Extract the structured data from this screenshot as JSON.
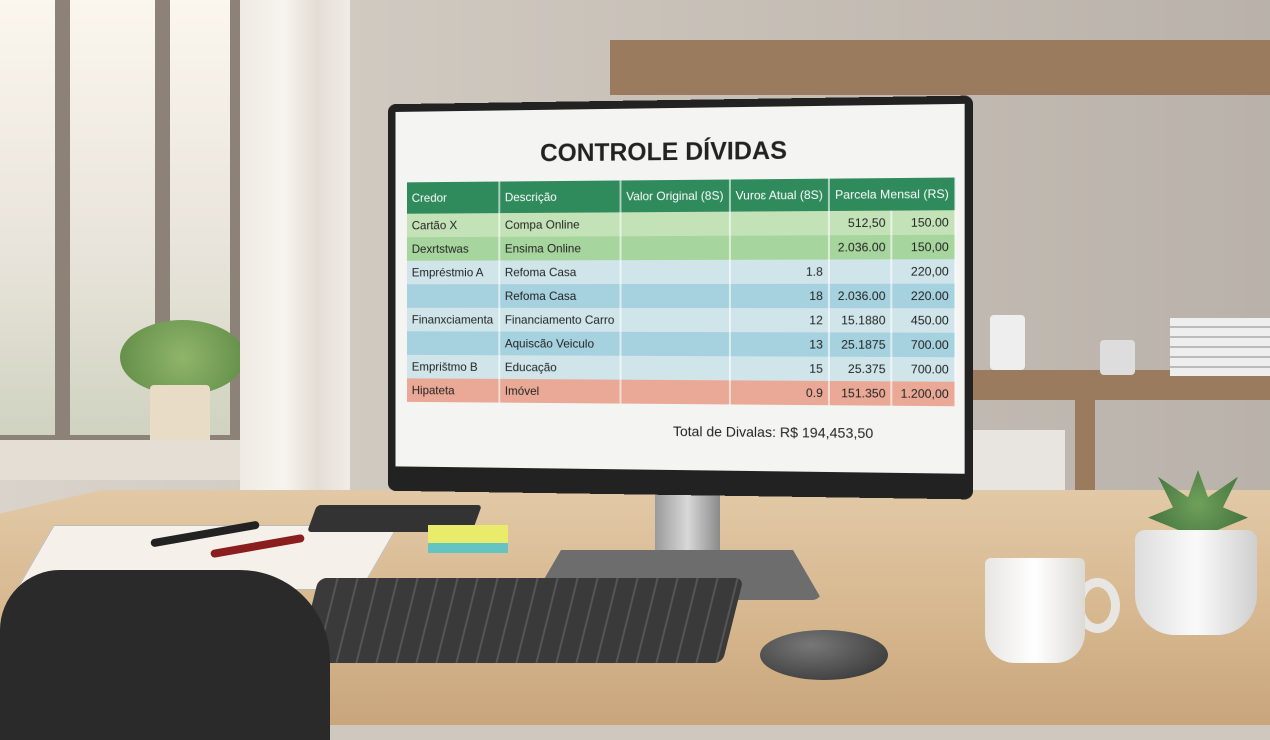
{
  "screen": {
    "title": "CONTROLE DÍVIDAS",
    "headers": [
      "Credor",
      "Descrição",
      "Valor Original (8S)",
      "Vuroɛ Atual (8S)",
      "Parcela Mensal (RS)",
      ""
    ],
    "rows": [
      {
        "credor": "Cartão X",
        "descricao": "Compa Online",
        "valor_original": "",
        "atual": "",
        "parcela": "512,50",
        "extra": "150.00",
        "tone": "g1"
      },
      {
        "credor": "Dexrtstwas",
        "descricao": "Ensima Online",
        "valor_original": "",
        "atual": "",
        "parcela": "2.036.00",
        "extra": "150,00",
        "tone": "g2"
      },
      {
        "credor": "Empréstmio A",
        "descricao": "Refoma Casa",
        "valor_original": "",
        "atual": "1.8",
        "parcela": "",
        "extra": "220,00",
        "tone": "b1"
      },
      {
        "credor": "",
        "descricao": "Refoma Casa",
        "valor_original": "",
        "atual": "18",
        "parcela": "2.036.00",
        "extra": "220.00",
        "tone": "b2"
      },
      {
        "credor": "Finanxciamenta",
        "descricao": "Financiamento Carro",
        "valor_original": "",
        "atual": "12",
        "parcela": "15.1880",
        "extra": "450.00",
        "tone": "b1"
      },
      {
        "credor": "",
        "descricao": "Aquiscão Veiculo",
        "valor_original": "",
        "atual": "13",
        "parcela": "25.1875",
        "extra": "700.00",
        "tone": "b2"
      },
      {
        "credor": "Emprištmo B",
        "descricao": "Educação",
        "valor_original": "",
        "atual": "15",
        "parcela": "25.375",
        "extra": "700.00",
        "tone": "b1"
      },
      {
        "credor": "Hipateta",
        "descricao": "Imóvel",
        "valor_original": "",
        "atual": "0.9",
        "parcela": "151.350",
        "extra": "1.200,00",
        "tone": "r"
      }
    ],
    "total": "Total de Divalas: R$ 194,453,50"
  },
  "colors": {
    "header": "#2f8a5c",
    "green_row": "#c4e2b7",
    "blue_row": "#a6d1de",
    "red_row": "#e9a996"
  }
}
